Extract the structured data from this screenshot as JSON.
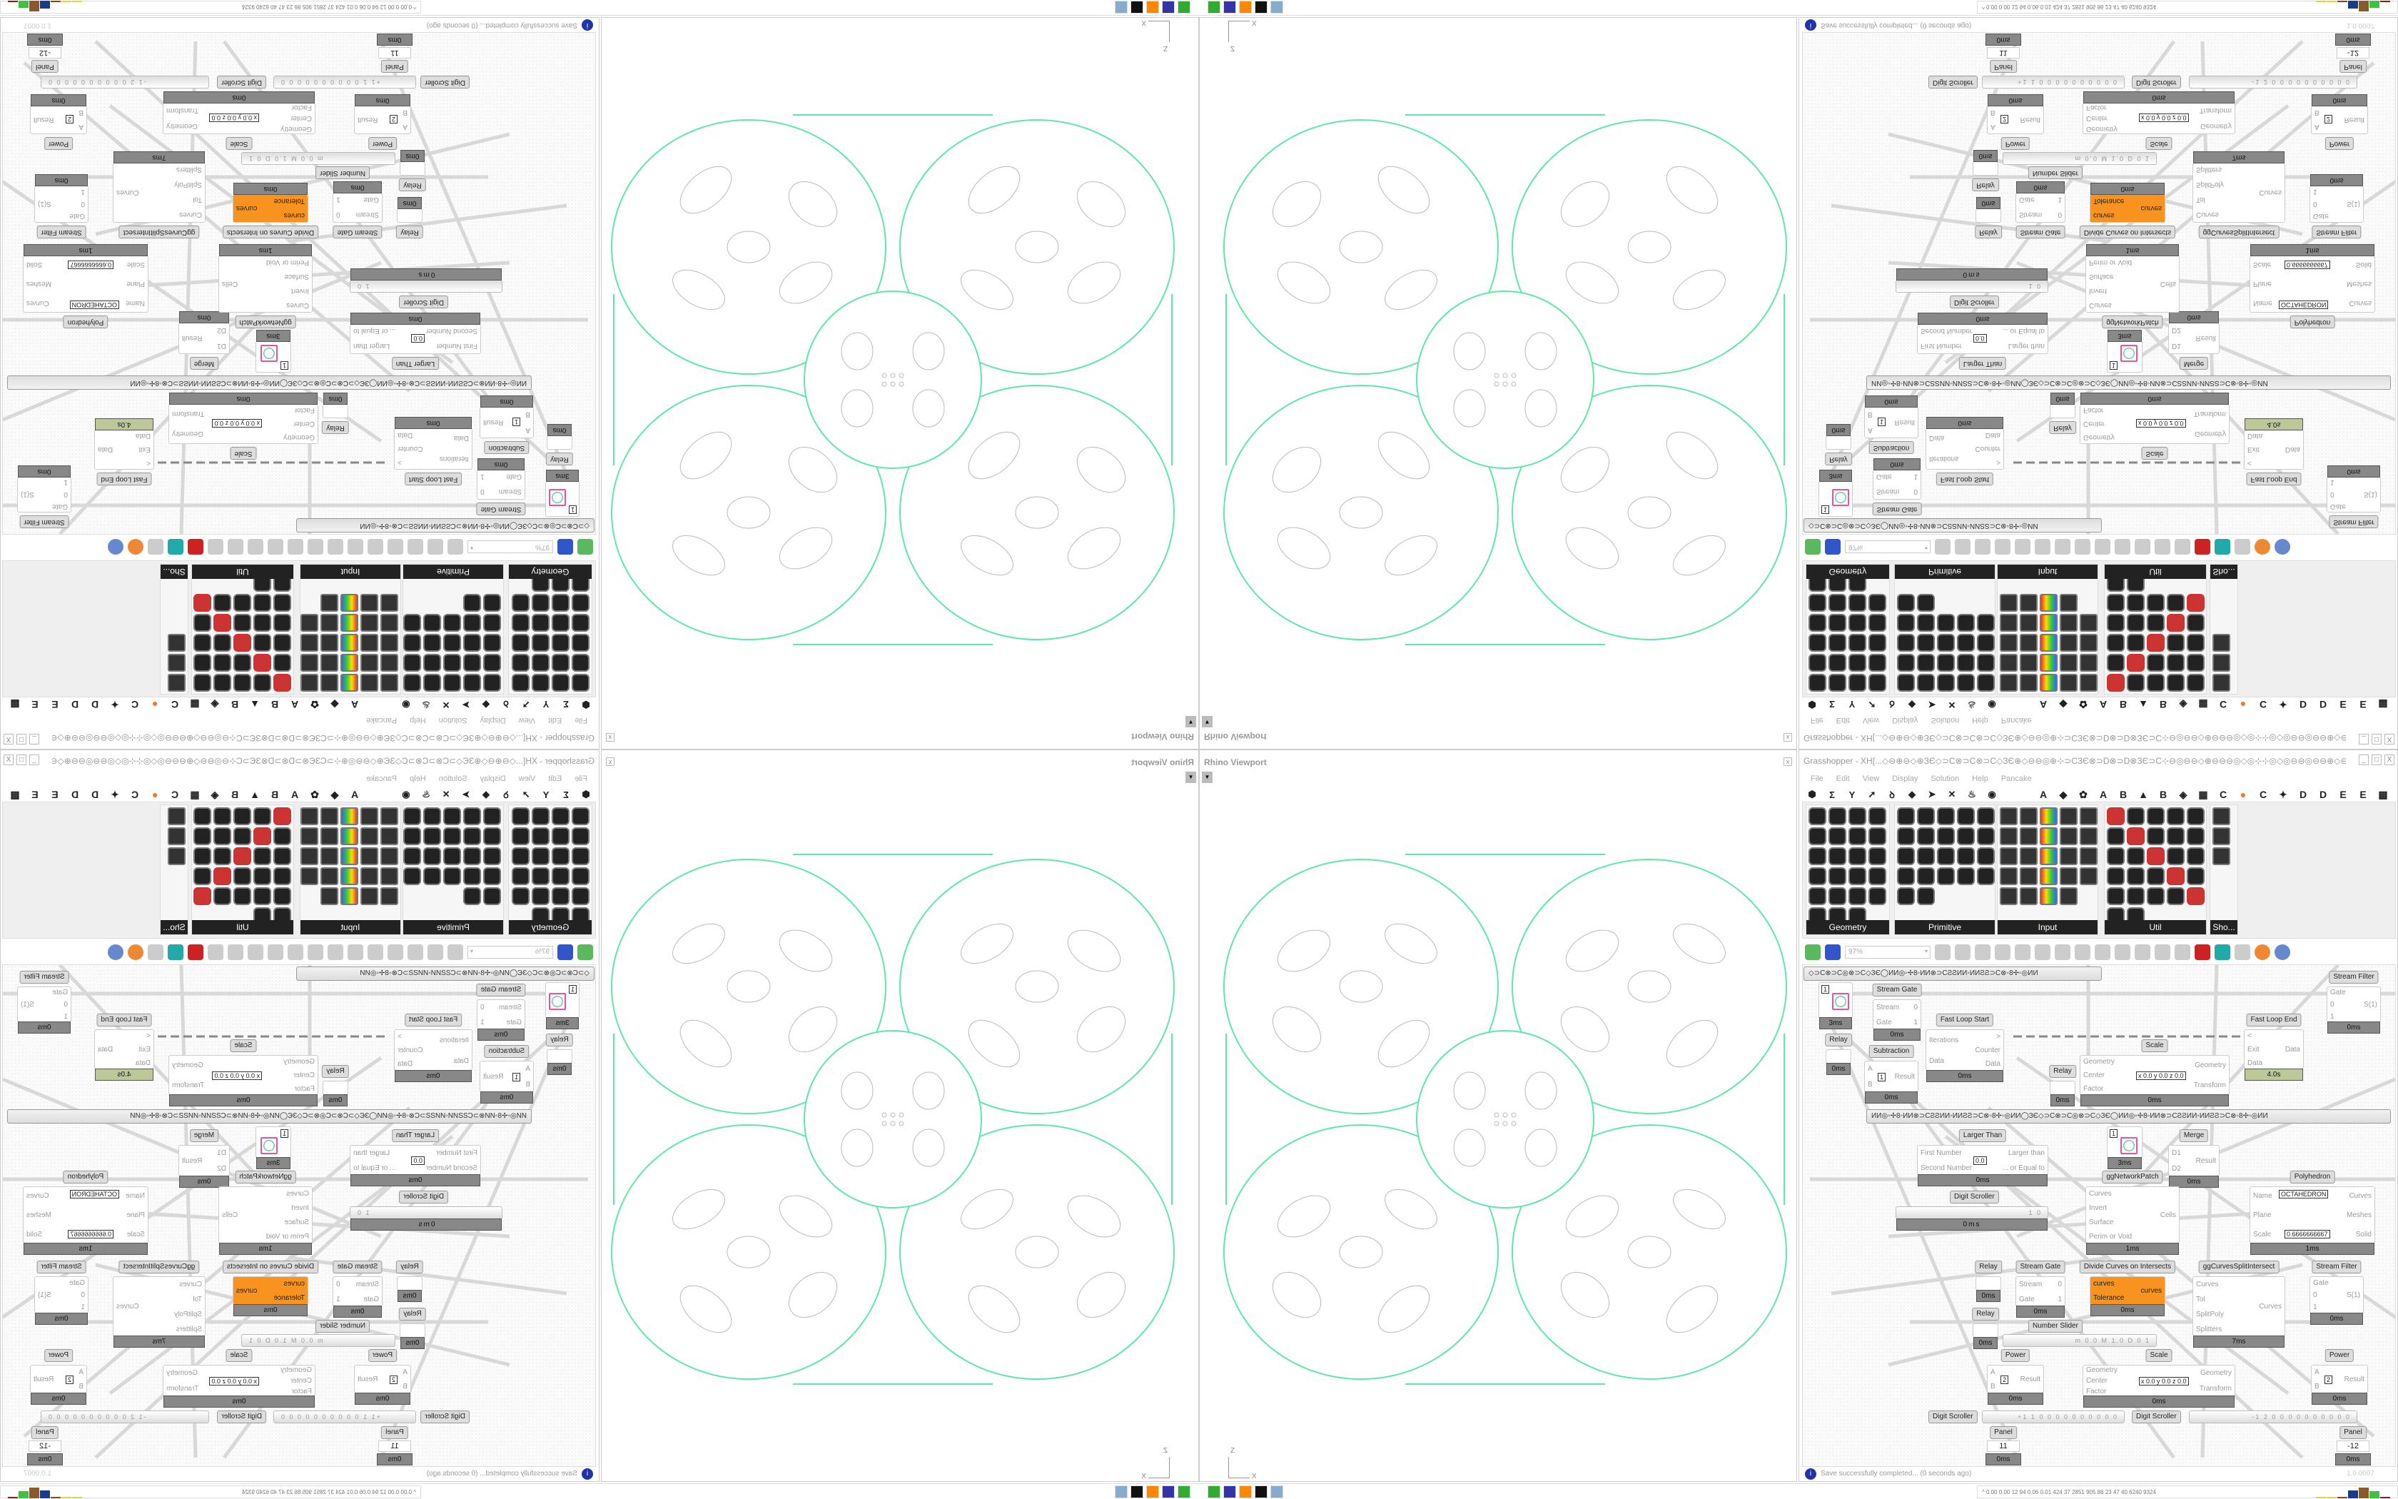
{
  "viewport": {
    "title": "Rhino Viewport",
    "close_label": "x",
    "dropdown_icon": "triangle-down",
    "axis_z": "Z",
    "axis_x": "X",
    "curve_color": "#5ee8a8",
    "detail_color": "#bbbbbb"
  },
  "grasshopper": {
    "title": "Grasshopper - XH[...◇⊖⊕⊖◇⊕ЗЄ◇⊃C⊗⊃C⊗⊃C◇ЗЄ⊕◇⊖⊖◎⊕⊹⊃CЗЄ⊗⊃D⊗⊃D⊗ЗЄ⊃C⊹⊖◎⊖⊖◇⊕⊖⊖⊖◎◇◎⊹⊹◎◇◎⊖⊖◎⊖⊖⊕◇⊖⊖◎⊕⊹⊃CЗЄ⊗⊃D⊗...",
    "window_buttons": [
      "_",
      "□",
      "X"
    ],
    "menu": [
      "File",
      "Edit",
      "View",
      "Display",
      "Solution",
      "Help",
      "Pancake"
    ],
    "tab_icons": [
      "hexagon",
      "sigma",
      "vector",
      "arrow",
      "loop",
      "surface",
      "mesh",
      "intersect",
      "transform",
      "eye"
    ],
    "tab_letters": [
      "A",
      "◆",
      "✿",
      "A",
      "B",
      "▲",
      "B",
      "◈",
      "▦",
      "C",
      "●",
      "C",
      "✦",
      "D",
      "D",
      "E",
      "E",
      "▩"
    ],
    "panels": [
      {
        "label": "Geometry",
        "icons": 23
      },
      {
        "label": "Primitive",
        "icons": 22
      },
      {
        "label": "Input",
        "icons": 24
      },
      {
        "label": "Util",
        "icons": 27
      },
      {
        "label": "Sho...",
        "icons": 3
      }
    ],
    "toolbar": {
      "zoom": "97%",
      "icons": [
        "new-file",
        "save",
        "zoom-extents",
        "preview",
        "sketch",
        "bake",
        "shaded",
        "gha",
        "canvas",
        "search",
        "unknown-package",
        "bulb",
        "wires",
        "pin",
        "preview-mesh",
        "red-gem",
        "teal",
        "green",
        "sphere-orange",
        "sphere-blue"
      ]
    },
    "groups": [
      "◇⊃C⊗⊃C◎⊗⊃C◇ЗЄ◯ИИ◎◦✢8◦ИИ⊗⊃CƧƧИИ◦ИИƧƧ⊃C⊗◦8✢◦◎ИИ",
      "ИИ◎◦✢8◦ИИ⊗⊃CƧƧИИ◦ИИƧƧ⊃C⊗◦8✢◦◎ИИ◯ЗЄ◇⊃C⊗⊃C◎⊗⊃C◇ЗЄ◯ИИ◎◦✢8◦ИИ⊗⊃CƧƧИИ◦ИИƧƧ⊃C⊗◦8✢◦◎ИИ"
    ],
    "nodes": [
      {
        "label": "",
        "in": [
          "",
          ""
        ],
        "out": [
          ""
        ],
        "time": "3ms",
        "value": "1"
      },
      {
        "label": "Relay",
        "in": [],
        "out": [],
        "time": "0ms"
      },
      {
        "label": "Stream Gate",
        "in": [
          "Stream",
          "Gate"
        ],
        "out": [
          "0",
          "1"
        ],
        "time": "0ms"
      },
      {
        "label": "Subtraction",
        "in": [
          "A",
          "B"
        ],
        "out": [
          "Result"
        ],
        "time": "0ms",
        "value": "1"
      },
      {
        "label": "Fast Loop Start",
        "in": [
          "Iterations",
          "Data"
        ],
        "out": [
          ">",
          "Counter",
          "Data"
        ],
        "time": "0ms"
      },
      {
        "label": "Relay",
        "in": [],
        "out": [],
        "time": "0ms"
      },
      {
        "label": "Scale",
        "in": [
          "Geometry",
          "Center",
          "Factor"
        ],
        "out": [
          "Geometry",
          "Transform"
        ],
        "time": "0ms",
        "value": "x 0.0 y 0.0 z 0.0"
      },
      {
        "label": "Fast Loop End",
        "in": [
          "<",
          "Exit",
          "Data"
        ],
        "out": [
          "Data"
        ],
        "time": "4.0s"
      },
      {
        "label": "Stream Filter",
        "in": [
          "Gate",
          "0",
          "1"
        ],
        "out": [
          "S(1)"
        ],
        "time": "0ms"
      },
      {
        "label": "Larger Than",
        "in": [
          "First Number",
          "Second Number"
        ],
        "out": [
          "Larger than",
          "... or Equal to"
        ],
        "time": "0ms",
        "value": "0.0"
      },
      {
        "label": "",
        "in": [
          "",
          ""
        ],
        "out": [
          ""
        ],
        "time": "3ms",
        "value": "1"
      },
      {
        "label": "Merge",
        "in": [
          "D1",
          "D2"
        ],
        "out": [
          "Result"
        ],
        "time": "0ms"
      },
      {
        "label": "ggNetworkPatch",
        "in": [
          "Curves",
          "Invert",
          "Surface",
          "Perim or Void"
        ],
        "out": [
          "Cells"
        ],
        "time": "1ms"
      },
      {
        "label": "Polyhedron",
        "in": [
          "Name",
          "Plane",
          "Scale"
        ],
        "out": [
          "Curves",
          "Meshes",
          "Solid"
        ],
        "time": "1ms",
        "value": "OCTAHEDRON",
        "value2": "0.6666666667"
      },
      {
        "label": "Relay",
        "in": [],
        "out": [],
        "time": "0ms"
      },
      {
        "label": "Relay",
        "in": [],
        "out": [],
        "time": "0ms"
      },
      {
        "label": "Stream Gate",
        "in": [
          "Stream",
          "Gate"
        ],
        "out": [
          "0",
          "1"
        ],
        "time": "0ms"
      },
      {
        "label": "Divide Curves on Intersects",
        "in": [
          "curves",
          "Tolerance"
        ],
        "out": [
          "curves"
        ],
        "time": "0ms"
      },
      {
        "label": "ggCurvesSplitIntersect",
        "in": [
          "Curves",
          "Tol",
          "SplitPoly",
          "Splitters"
        ],
        "out": [
          "Curves"
        ],
        "time": "7ms"
      },
      {
        "label": "Stream Filter",
        "in": [
          "Gate",
          "0",
          "1"
        ],
        "out": [
          "S(1)"
        ],
        "time": "0ms"
      },
      {
        "label": "Scale",
        "in": [
          "Geometry",
          "Center",
          "Factor"
        ],
        "out": [
          "Geometry",
          "Transform"
        ],
        "time": "0ms",
        "value": "x 0.0 y 0.0 z 0.0"
      },
      {
        "label": "Power",
        "in": [
          "A",
          "B"
        ],
        "out": [
          "Result"
        ],
        "time": "0ms",
        "value": "2"
      },
      {
        "label": "Power",
        "in": [
          "A",
          "B"
        ],
        "out": [
          "Result"
        ],
        "time": "0ms",
        "value": "2"
      },
      {
        "label": "Panel",
        "in": [],
        "out": [],
        "time": "0ms",
        "value": "11"
      },
      {
        "label": "Panel",
        "in": [],
        "out": [],
        "time": "0ms",
        "value": "-12"
      }
    ],
    "sliders": [
      {
        "label": "Digit Scroller",
        "value": "1 0",
        "time": "0ms"
      },
      {
        "label": "Number Slider",
        "value": "m 0.0 M 1.0 D 0   1",
        "time": ""
      },
      {
        "label": "Digit Scroller",
        "value": "+1 1 0 0 0 0 0 0 0 0 0 0",
        "time": ""
      },
      {
        "label": "Digit Scroller",
        "value": "-1 2 0 0 0 0 0 0 0 0 0 0",
        "time": ""
      }
    ],
    "status": {
      "message": "Save successfully completed... (0 seconds ago)",
      "version": "1.0.0007",
      "icon": "info"
    }
  },
  "taskbar": {
    "apps": [
      "app-green",
      "floppy-64",
      "firefox",
      "inkscape",
      "calculator"
    ],
    "stats": "^  0.00 0.00  12   94  0.06 0.01  424  37  2851 905  86  23  47  40  6240 9324",
    "bar_colors": [
      "#d8d840",
      "#d8d840",
      "#8b4513",
      "#1a3a8a",
      "#8b5a2b",
      "#40c040",
      "#8b1a1a"
    ]
  }
}
